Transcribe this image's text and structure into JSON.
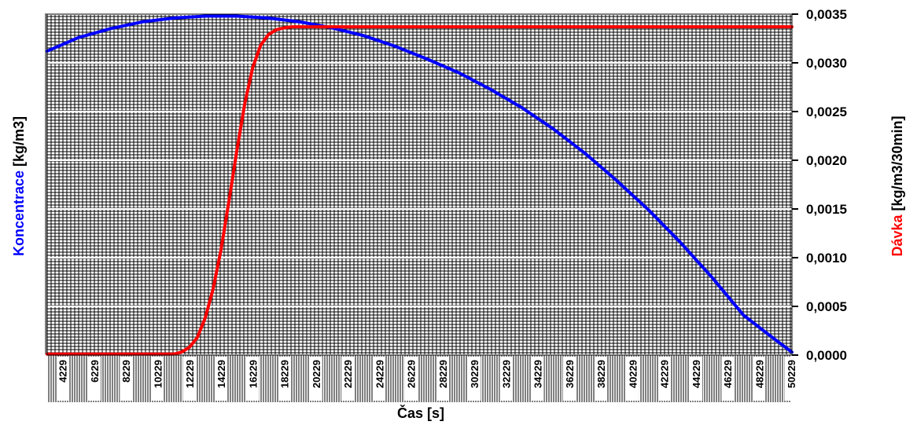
{
  "chart_data": {
    "type": "line",
    "xlabel": "Čas [s]",
    "ylabel_left": {
      "prefix": "Koncentrace ",
      "unit": "[kg/m3]"
    },
    "ylabel_right": {
      "prefix": "Dávka ",
      "unit": "[kg/m3/30min]"
    },
    "xlim": [
      3250,
      50290
    ],
    "ylim": [
      0,
      0.0035
    ],
    "grid": true,
    "x_ticks": [
      "4229",
      "6229",
      "8229",
      "10229",
      "12229",
      "14229",
      "16229",
      "18229",
      "20229",
      "22229",
      "24229",
      "26229",
      "28229",
      "30229",
      "32229",
      "34229",
      "36229",
      "38229",
      "40229",
      "42229",
      "44229",
      "46229",
      "48229",
      "50229"
    ],
    "y_ticks": [
      "0,0000",
      "0,0005",
      "0,0010",
      "0,0015",
      "0,0020",
      "0,0025",
      "0,0030",
      "0,0035"
    ],
    "y_tick_values": [
      0,
      0.0005,
      0.001,
      0.0015,
      0.002,
      0.0025,
      0.003,
      0.0035
    ],
    "series": [
      {
        "color": "#0000ff",
        "x": [
          3250,
          5229,
          7229,
          9229,
          11229,
          13229,
          15229,
          17229,
          19229,
          21229,
          23229,
          25229,
          27229,
          29229,
          31229,
          33229,
          35229,
          37229,
          39229,
          41229,
          43229,
          45229,
          47229,
          49229,
          50290
        ],
        "values": [
          0.00312,
          0.00326,
          0.00335,
          0.00342,
          0.00346,
          0.00348,
          0.00348,
          0.00346,
          0.00342,
          0.00336,
          0.00328,
          0.00317,
          0.00304,
          0.0029,
          0.00273,
          0.00254,
          0.00232,
          0.00207,
          0.00179,
          0.00149,
          0.00116,
          0.0008,
          0.00041,
          0.00016,
          3e-05
        ]
      },
      {
        "color": "#ff0000",
        "x": [
          3250,
          6229,
          9229,
          11229,
          11729,
          12229,
          12729,
          13229,
          13729,
          14229,
          14729,
          15229,
          15729,
          16229,
          16729,
          17229,
          17729,
          18229,
          18729,
          19229,
          20229,
          22229,
          26229,
          30229,
          36229,
          42229,
          48229,
          50290
        ],
        "values": [
          1e-05,
          1e-05,
          1e-05,
          1e-05,
          3e-05,
          8e-05,
          0.00018,
          0.00038,
          0.00068,
          0.00108,
          0.00158,
          0.0021,
          0.00258,
          0.00295,
          0.00318,
          0.00329,
          0.00334,
          0.00336,
          0.00337,
          0.00337,
          0.00337,
          0.00337,
          0.00337,
          0.00337,
          0.00337,
          0.00337,
          0.00337,
          0.00337
        ]
      }
    ]
  }
}
